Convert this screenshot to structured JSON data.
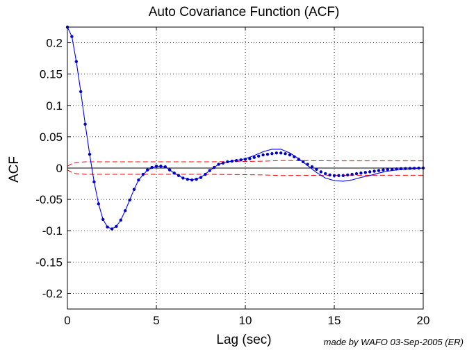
{
  "credit": "made by WAFO 03-Sep-2005 (ER)",
  "colors": {
    "curve": "#0000ff",
    "points": "#0000c8",
    "bounds": "#ff0000",
    "zero_line": "#000000",
    "grid": "#000000",
    "frame": "#000000"
  },
  "chart_data": {
    "type": "line",
    "title": "Auto Covariance Function (ACF)",
    "xlabel": "Lag (sec)",
    "ylabel": "ACF",
    "xlim": [
      0,
      20
    ],
    "ylim": [
      -0.225,
      0.225
    ],
    "xticks": [
      0,
      5,
      10,
      15,
      20
    ],
    "xtick_labels": [
      "0",
      "5",
      "10",
      "15",
      "20"
    ],
    "yticks": [
      0.2,
      0.15,
      0.1,
      0.05,
      0,
      -0.05,
      -0.1,
      -0.15,
      -0.2
    ],
    "ytick_labels": [
      "0.2",
      "0.15",
      "0.1",
      "0.05",
      "0",
      "-0.05",
      "-0.1",
      "-0.15",
      "-0.2"
    ],
    "grid": true,
    "series": [
      {
        "style": "solid-line",
        "x": [
          0,
          0.25,
          0.5,
          0.75,
          1.0,
          1.25,
          1.5,
          1.75,
          2.0,
          2.25,
          2.5,
          2.75,
          3.0,
          3.25,
          3.5,
          3.75,
          4.0,
          4.5,
          5.0,
          5.5,
          6.0,
          6.5,
          7.0,
          7.5,
          8.0,
          8.5,
          9.0,
          9.5,
          10.0,
          10.5,
          11.0,
          11.5,
          12.0,
          12.5,
          13.0,
          13.5,
          14.0,
          14.5,
          15.0,
          15.5,
          16.0,
          16.5,
          17.0,
          17.5,
          18.0,
          18.5,
          19.0,
          19.5,
          20.0
        ],
        "y": [
          0.225,
          0.21,
          0.17,
          0.122,
          0.07,
          0.022,
          -0.022,
          -0.057,
          -0.082,
          -0.094,
          -0.097,
          -0.093,
          -0.083,
          -0.068,
          -0.051,
          -0.034,
          -0.019,
          -0.003,
          0.003,
          0.002,
          -0.008,
          -0.016,
          -0.019,
          -0.015,
          -0.004,
          0.006,
          0.01,
          0.012,
          0.015,
          0.02,
          0.026,
          0.03,
          0.03,
          0.024,
          0.015,
          0.004,
          -0.007,
          -0.016,
          -0.02,
          -0.021,
          -0.019,
          -0.015,
          -0.012,
          -0.008,
          -0.005,
          -0.003,
          -0.002,
          -0.001,
          0.0
        ]
      },
      {
        "style": "point-markers",
        "x": [
          0,
          0.25,
          0.5,
          0.75,
          1.0,
          1.25,
          1.5,
          1.75,
          2.0,
          2.25,
          2.5,
          2.75,
          3.0,
          3.25,
          3.5,
          3.75,
          4.0,
          4.25,
          4.5,
          4.75,
          5.0,
          5.25,
          5.5,
          5.75,
          6.0,
          6.25,
          6.5,
          6.75,
          7.0,
          7.25,
          7.5,
          7.75,
          8.0,
          8.25,
          8.5,
          8.75,
          9.0,
          9.25,
          9.5,
          9.75,
          10.0,
          10.25,
          10.5,
          10.75,
          11.0,
          11.25,
          11.5,
          11.75,
          12.0,
          12.25,
          12.5,
          12.75,
          13.0,
          13.25,
          13.5,
          13.75,
          14.0,
          14.25,
          14.5,
          14.75,
          15.0,
          15.25,
          15.5,
          15.75,
          16.0,
          16.25,
          16.5,
          16.75,
          17.0,
          17.25,
          17.5,
          17.75,
          18.0,
          18.25,
          18.5,
          18.75,
          19.0,
          19.25,
          19.5,
          19.75,
          20.0
        ],
        "y": [
          0.225,
          0.21,
          0.17,
          0.122,
          0.07,
          0.022,
          -0.022,
          -0.057,
          -0.082,
          -0.094,
          -0.097,
          -0.093,
          -0.083,
          -0.068,
          -0.051,
          -0.034,
          -0.019,
          -0.01,
          -0.003,
          0.001,
          0.003,
          0.003,
          0.002,
          -0.003,
          -0.008,
          -0.012,
          -0.016,
          -0.018,
          -0.019,
          -0.018,
          -0.015,
          -0.01,
          -0.004,
          0.001,
          0.006,
          0.008,
          0.01,
          0.011,
          0.012,
          0.013,
          0.014,
          0.015,
          0.017,
          0.019,
          0.021,
          0.022,
          0.023,
          0.024,
          0.024,
          0.023,
          0.021,
          0.018,
          0.014,
          0.01,
          0.006,
          0.002,
          -0.002,
          -0.006,
          -0.009,
          -0.011,
          -0.012,
          -0.012,
          -0.012,
          -0.011,
          -0.01,
          -0.009,
          -0.008,
          -0.007,
          -0.006,
          -0.005,
          -0.004,
          -0.003,
          -0.0025,
          -0.002,
          -0.0015,
          -0.001,
          -0.0008,
          -0.0005,
          -0.0003,
          -0.0001,
          0.0
        ]
      },
      {
        "style": "dashed-upper-bound",
        "x": [
          0,
          0.25,
          0.5,
          1.0,
          2.0,
          5.0,
          8.0,
          10.0,
          11.0,
          12.0,
          13.0,
          15.0,
          18.0,
          20.0
        ],
        "y": [
          0.003,
          0.007,
          0.009,
          0.01,
          0.01,
          0.01,
          0.01,
          0.0105,
          0.011,
          0.012,
          0.0118,
          0.0115,
          0.0115,
          0.0115
        ]
      },
      {
        "style": "dashed-lower-bound",
        "x": [
          0,
          0.25,
          0.5,
          1.0,
          2.0,
          5.0,
          8.0,
          10.0,
          11.0,
          12.0,
          13.0,
          15.0,
          18.0,
          20.0
        ],
        "y": [
          -0.003,
          -0.007,
          -0.009,
          -0.01,
          -0.01,
          -0.01,
          -0.01,
          -0.0105,
          -0.011,
          -0.012,
          -0.0118,
          -0.0115,
          -0.0115,
          -0.0115
        ]
      }
    ]
  }
}
